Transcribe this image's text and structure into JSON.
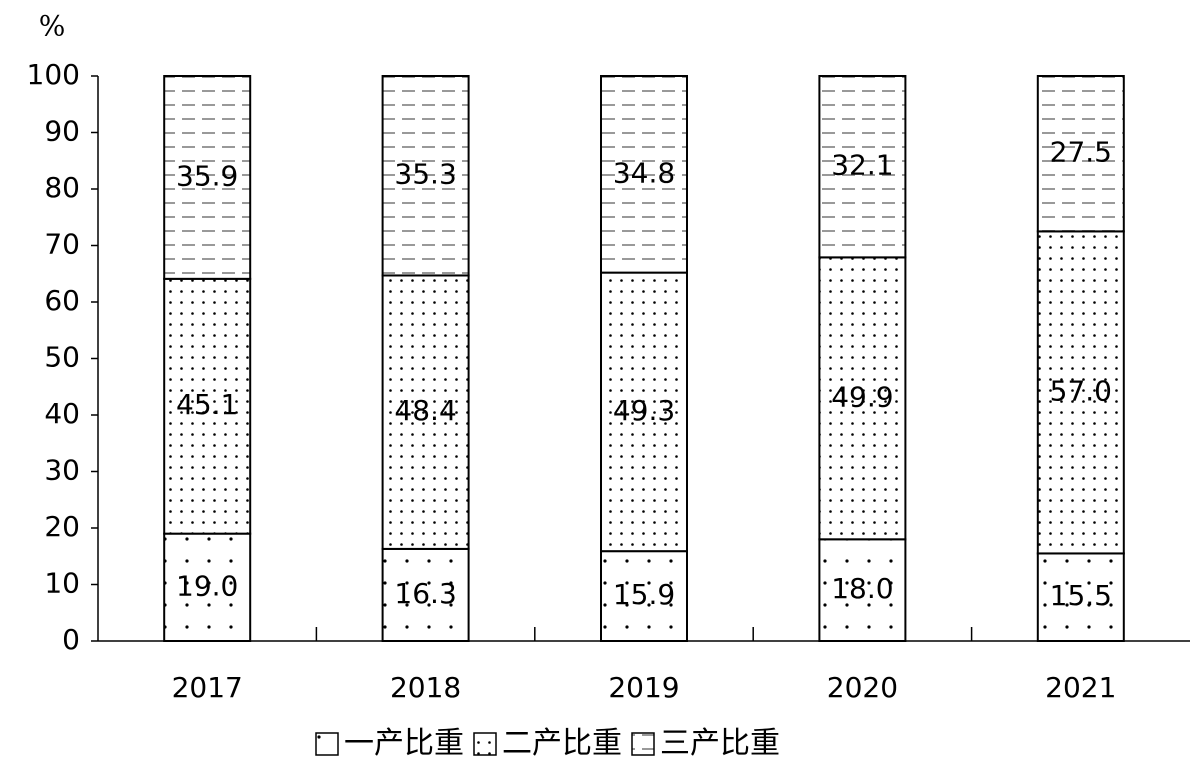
{
  "chart_data": {
    "type": "stacked-bar",
    "y_label": "%",
    "categories": [
      "2017",
      "2018",
      "2019",
      "2020",
      "2021"
    ],
    "series": [
      {
        "name": "一产比重",
        "color": "#ffffff",
        "pattern": "sparse-dots",
        "values": [
          19.0,
          16.3,
          15.9,
          18.0,
          15.5
        ],
        "value_labels": [
          "19.0",
          "16.3",
          "15.9",
          "18.0",
          "15.5"
        ]
      },
      {
        "name": "二产比重",
        "color": "#ffffff",
        "pattern": "dense-dots",
        "values": [
          45.1,
          48.4,
          49.3,
          49.9,
          57.0
        ],
        "value_labels": [
          "45.1",
          "48.4",
          "49.3",
          "49.9",
          "57.0"
        ]
      },
      {
        "name": "三产比重",
        "color": "#ffffff",
        "pattern": "dashes",
        "values": [
          35.9,
          35.3,
          34.8,
          32.1,
          27.5
        ],
        "value_labels": [
          "35.9",
          "35.3",
          "34.8",
          "32.1",
          "27.5"
        ]
      }
    ],
    "ylim": [
      0,
      100
    ],
    "yticks": [
      0,
      10,
      20,
      30,
      40,
      50,
      60,
      70,
      80,
      90,
      100
    ],
    "grid": false,
    "legend": "bottom"
  }
}
